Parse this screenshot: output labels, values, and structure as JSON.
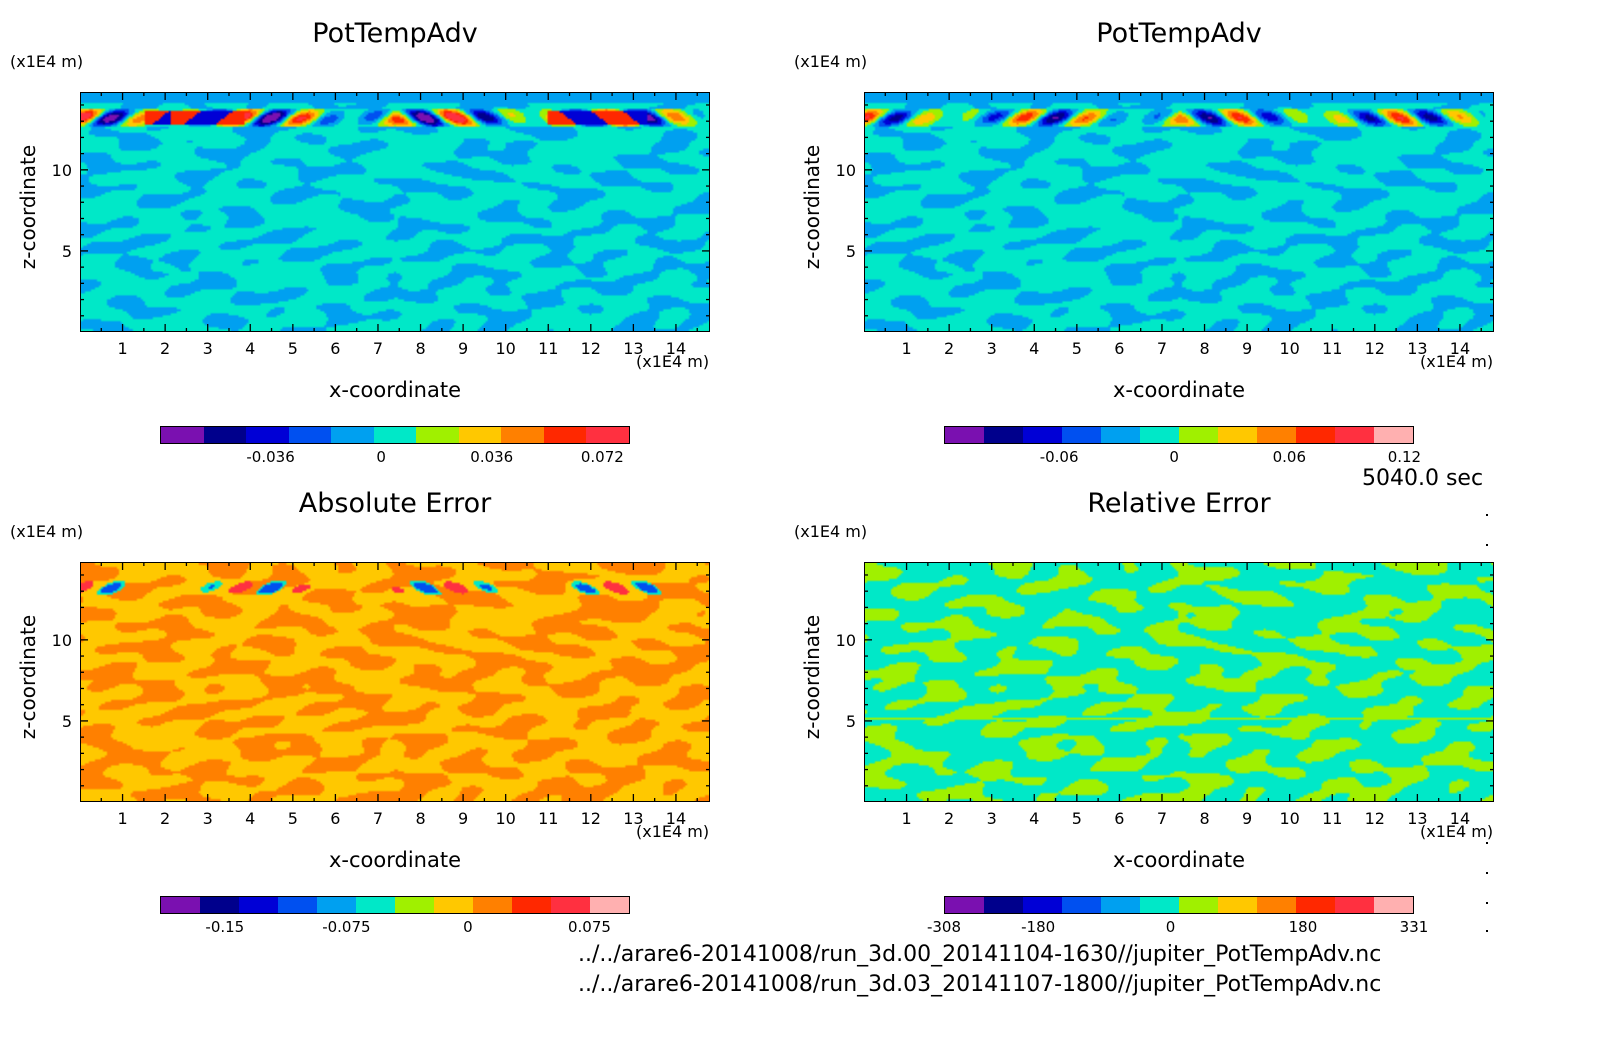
{
  "time_label": "5040.0 sec",
  "files": [
    "../../arare6-20141008/run_3d.00_20141104-1630//jupiter_PotTempAdv.nc",
    "../../arare6-20141008/run_3d.03_20141107-1800//jupiter_PotTempAdv.nc"
  ],
  "chart_data": [
    {
      "type": "heatmap",
      "title": "PotTempAdv",
      "xlabel": "x-coordinate",
      "ylabel": "z-coordinate",
      "x_unit": "(x1E4 m)",
      "y_unit": "(x1E4 m)",
      "xlim": [
        0,
        14.8
      ],
      "ylim": [
        0,
        14.8
      ],
      "xticks": [
        "1",
        "2",
        "3",
        "4",
        "5",
        "6",
        "7",
        "8",
        "9",
        "10",
        "11",
        "12",
        "13",
        "14"
      ],
      "yticks": [
        "5",
        "10"
      ],
      "colorbar": {
        "colors": [
          "#7a10b0",
          "#00008c",
          "#0000d6",
          "#0050f0",
          "#00a0f0",
          "#00e8c8",
          "#a0f000",
          "#ffc800",
          "#ff8000",
          "#ff2800",
          "#ff3040"
        ],
        "tick_labels": [
          "-0.036",
          "0",
          "0.036",
          "0.072"
        ],
        "tick_values": [
          -0.036,
          0,
          0.036,
          0.072
        ],
        "range": [
          -0.072,
          0.081
        ]
      }
    },
    {
      "type": "heatmap",
      "title": "PotTempAdv",
      "xlabel": "x-coordinate",
      "ylabel": "z-coordinate",
      "x_unit": "(x1E4 m)",
      "y_unit": "(x1E4 m)",
      "xlim": [
        0,
        14.8
      ],
      "ylim": [
        0,
        14.8
      ],
      "xticks": [
        "1",
        "2",
        "3",
        "4",
        "5",
        "6",
        "7",
        "8",
        "9",
        "10",
        "11",
        "12",
        "13",
        "14"
      ],
      "yticks": [
        "5",
        "10"
      ],
      "colorbar": {
        "colors": [
          "#7a10b0",
          "#00008c",
          "#0000d6",
          "#0050f0",
          "#00a0f0",
          "#00e8c8",
          "#a0f000",
          "#ffc800",
          "#ff8000",
          "#ff2800",
          "#ff3040",
          "#ffb0b0"
        ],
        "tick_labels": [
          "-0.06",
          "0",
          "0.06",
          "0.12"
        ],
        "tick_values": [
          -0.06,
          0,
          0.06,
          0.12
        ],
        "range": [
          -0.12,
          0.125
        ]
      }
    },
    {
      "type": "heatmap",
      "title": "Absolute Error",
      "xlabel": "x-coordinate",
      "ylabel": "z-coordinate",
      "x_unit": "(x1E4 m)",
      "y_unit": "(x1E4 m)",
      "xlim": [
        0,
        14.8
      ],
      "ylim": [
        0,
        14.8
      ],
      "xticks": [
        "1",
        "2",
        "3",
        "4",
        "5",
        "6",
        "7",
        "8",
        "9",
        "10",
        "11",
        "12",
        "13",
        "14"
      ],
      "yticks": [
        "5",
        "10"
      ],
      "colorbar": {
        "colors": [
          "#7a10b0",
          "#00008c",
          "#0000d6",
          "#0050f0",
          "#00a0f0",
          "#00e8c8",
          "#a0f000",
          "#ffc800",
          "#ff8000",
          "#ff2800",
          "#ff3040",
          "#ffb0b0"
        ],
        "tick_labels": [
          "-0.15",
          "-0.075",
          "0",
          "0.075"
        ],
        "tick_values": [
          -0.15,
          -0.075,
          0,
          0.075
        ],
        "range": [
          -0.19,
          0.1
        ]
      }
    },
    {
      "type": "heatmap",
      "title": "Relative Error",
      "xlabel": "x-coordinate",
      "ylabel": "z-coordinate",
      "x_unit": "(x1E4 m)",
      "y_unit": "(x1E4 m)",
      "xlim": [
        0,
        14.8
      ],
      "ylim": [
        0,
        14.8
      ],
      "xticks": [
        "1",
        "2",
        "3",
        "4",
        "5",
        "6",
        "7",
        "8",
        "9",
        "10",
        "11",
        "12",
        "13",
        "14"
      ],
      "yticks": [
        "5",
        "10"
      ],
      "colorbar": {
        "colors": [
          "#7a10b0",
          "#00008c",
          "#0000d6",
          "#0050f0",
          "#00a0f0",
          "#00e8c8",
          "#a0f000",
          "#ffc800",
          "#ff8000",
          "#ff2800",
          "#ff3040",
          "#ffb0b0"
        ],
        "tick_labels": [
          "-308",
          "-180",
          "0",
          "180",
          "331"
        ],
        "tick_values": [
          -308,
          -180,
          0,
          180,
          331
        ],
        "range": [
          -308,
          331
        ]
      }
    }
  ]
}
